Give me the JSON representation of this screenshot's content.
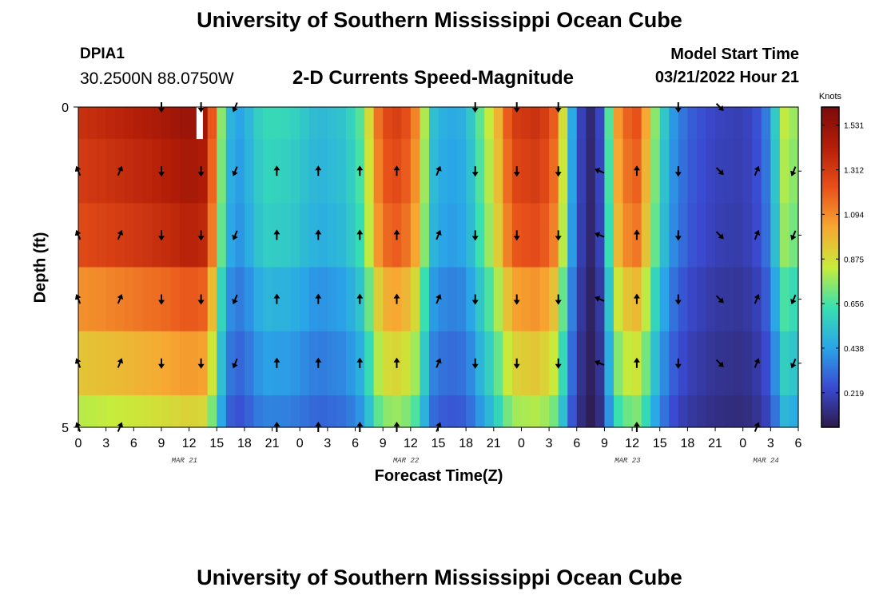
{
  "header": {
    "title": "University of Southern Mississippi Ocean Cube",
    "station_id": "DPIA1",
    "station_coords": "30.2500N  88.0750W",
    "subtitle": "2-D Currents Speed-Magnitude",
    "model_start_label": "Model Start Time",
    "model_start_value": "03/21/2022 Hour 21"
  },
  "footer": {
    "title": "University of Southern Mississippi Ocean Cube"
  },
  "chart_data": {
    "type": "heatmap",
    "title": "2-D Currents Speed-Magnitude",
    "xlabel": "Forecast Time(Z)",
    "ylabel": "Depth (ft)",
    "ylim": [
      0,
      5
    ],
    "xlim_hours": [
      0,
      78
    ],
    "x_ticks_hours": [
      0,
      3,
      6,
      9,
      12,
      15,
      18,
      21,
      24,
      27,
      30,
      33,
      36,
      39,
      42,
      45,
      48,
      51,
      54,
      57,
      60,
      63,
      66,
      69,
      72,
      75,
      78
    ],
    "x_tick_labels": [
      "0",
      "3",
      "6",
      "9",
      "12",
      "15",
      "18",
      "21",
      "0",
      "3",
      "6",
      "9",
      "12",
      "15",
      "18",
      "21",
      "0",
      "3",
      "6",
      "9",
      "12",
      "15",
      "18",
      "21",
      "0",
      "3",
      "6"
    ],
    "y_tick_labels": [
      "0",
      "5"
    ],
    "y_minor_ticks": [
      1,
      2,
      3,
      4
    ],
    "date_labels": [
      {
        "text": "MAR 21",
        "hour": 11.5
      },
      {
        "text": "MAR 22",
        "hour": 35.5
      },
      {
        "text": "MAR 23",
        "hour": 59.5
      },
      {
        "text": "MAR 24",
        "hour": 74.5
      }
    ],
    "colorbar": {
      "unit": "Knots",
      "min": 0.05,
      "max": 1.62,
      "ticks": [
        0.219,
        0.438,
        0.656,
        0.875,
        1.094,
        1.312,
        1.531
      ],
      "tick_labels": [
        "0.219",
        "0.438",
        "0.656",
        "0.875",
        "1.094",
        "1.312",
        "1.531"
      ]
    },
    "time_step_hours": 1,
    "surface_speed_profile_knots": [
      {
        "hour": 0,
        "speed": 1.35
      },
      {
        "hour": 3,
        "speed": 1.38
      },
      {
        "hour": 6,
        "speed": 1.42
      },
      {
        "hour": 9,
        "speed": 1.46
      },
      {
        "hour": 12,
        "speed": 1.52
      },
      {
        "hour": 14,
        "speed": 1.48
      },
      {
        "hour": 15,
        "speed": 0.95
      },
      {
        "hour": 16,
        "speed": 0.55
      },
      {
        "hour": 17,
        "speed": 0.42
      },
      {
        "hour": 18,
        "speed": 0.46
      },
      {
        "hour": 20,
        "speed": 0.62
      },
      {
        "hour": 23,
        "speed": 0.6
      },
      {
        "hour": 26,
        "speed": 0.5
      },
      {
        "hour": 29,
        "speed": 0.55
      },
      {
        "hour": 31,
        "speed": 0.72
      },
      {
        "hour": 32,
        "speed": 1.05
      },
      {
        "hour": 33,
        "speed": 1.25
      },
      {
        "hour": 35,
        "speed": 1.3
      },
      {
        "hour": 37,
        "speed": 1.05
      },
      {
        "hour": 38,
        "speed": 0.55
      },
      {
        "hour": 40,
        "speed": 0.45
      },
      {
        "hour": 42,
        "speed": 0.48
      },
      {
        "hour": 45,
        "speed": 0.9
      },
      {
        "hour": 47,
        "speed": 1.3
      },
      {
        "hour": 50,
        "speed": 1.35
      },
      {
        "hour": 52,
        "speed": 1.15
      },
      {
        "hour": 53,
        "speed": 0.6
      },
      {
        "hour": 54,
        "speed": 0.3
      },
      {
        "hour": 55,
        "speed": 0.12
      },
      {
        "hour": 56,
        "speed": 0.1
      },
      {
        "hour": 57,
        "speed": 0.35
      },
      {
        "hour": 58,
        "speed": 1.0
      },
      {
        "hour": 60,
        "speed": 1.25
      },
      {
        "hour": 61,
        "speed": 1.2
      },
      {
        "hour": 62,
        "speed": 0.85
      },
      {
        "hour": 64,
        "speed": 0.45
      },
      {
        "hour": 66,
        "speed": 0.3
      },
      {
        "hour": 69,
        "speed": 0.22
      },
      {
        "hour": 72,
        "speed": 0.2
      },
      {
        "hour": 74,
        "speed": 0.28
      },
      {
        "hour": 75,
        "speed": 0.42
      },
      {
        "hour": 76,
        "speed": 0.7
      },
      {
        "hour": 77,
        "speed": 0.95
      },
      {
        "hour": 78,
        "speed": 0.6
      }
    ],
    "depth_factor_by_level": [
      1.0,
      0.97,
      0.93,
      0.8,
      0.7,
      0.6
    ],
    "arrow_rows_depth": [
      0,
      1,
      2,
      3,
      4,
      5
    ],
    "arrows_by_hour": [
      {
        "hour": 0,
        "dir": "NNW",
        "rows": [
          1,
          2,
          3,
          4,
          5
        ]
      },
      {
        "hour": 4.5,
        "dir": "NNE",
        "rows": [
          1,
          2,
          3,
          4,
          5
        ]
      },
      {
        "hour": 9,
        "dir": "S",
        "rows": [
          0,
          1,
          2,
          3,
          4
        ]
      },
      {
        "hour": 13.3,
        "dir": "S",
        "rows": [
          0,
          1,
          2,
          3,
          4
        ]
      },
      {
        "hour": 17,
        "dir": "SSW",
        "rows": [
          0,
          1,
          2,
          3,
          4
        ]
      },
      {
        "hour": 21.5,
        "dir": "N",
        "rows": [
          1,
          2,
          3,
          4,
          5
        ]
      },
      {
        "hour": 26,
        "dir": "N",
        "rows": [
          1,
          2,
          3,
          4,
          5
        ]
      },
      {
        "hour": 30.5,
        "dir": "N",
        "rows": [
          1,
          2,
          3,
          4,
          5
        ]
      },
      {
        "hour": 34.5,
        "dir": "N",
        "rows": [
          1,
          2,
          3,
          4,
          5
        ]
      },
      {
        "hour": 39,
        "dir": "NNE",
        "rows": [
          1,
          2,
          3,
          4,
          5
        ]
      },
      {
        "hour": 43,
        "dir": "S",
        "rows": [
          0,
          1,
          2,
          3,
          4
        ]
      },
      {
        "hour": 47.5,
        "dir": "S",
        "rows": [
          0,
          1,
          2,
          3,
          4
        ]
      },
      {
        "hour": 52,
        "dir": "S",
        "rows": [
          0,
          1,
          2,
          3,
          4
        ]
      },
      {
        "hour": 56.5,
        "dir": "WNW",
        "rows": [
          1,
          2,
          3,
          4
        ]
      },
      {
        "hour": 60.5,
        "dir": "N",
        "rows": [
          1,
          2,
          3,
          4,
          5
        ]
      },
      {
        "hour": 65,
        "dir": "S",
        "rows": [
          0,
          1,
          2,
          3,
          4
        ]
      },
      {
        "hour": 69.5,
        "dir": "SE",
        "rows": [
          0,
          1,
          2,
          3,
          4
        ]
      },
      {
        "hour": 73.5,
        "dir": "NNE",
        "rows": [
          1,
          2,
          3,
          4,
          5
        ]
      },
      {
        "hour": 77.5,
        "dir": "SSW",
        "rows": [
          1,
          2,
          3,
          4
        ]
      }
    ],
    "missing_data": [
      {
        "hour_start": 12.8,
        "hour_end": 13.5,
        "depth_start": 0,
        "depth_end": 0.5
      }
    ],
    "colors": {
      "frame": "#000000",
      "arrow": "#000000",
      "background": "#ffffff",
      "colormap": [
        "#2c1a4a",
        "#3a4ad1",
        "#2aa6e8",
        "#38e0b0",
        "#c8ec3a",
        "#f7a732",
        "#e8501a",
        "#b41e08",
        "#7a0a0a"
      ]
    }
  }
}
